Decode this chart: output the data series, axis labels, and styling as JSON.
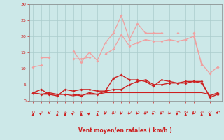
{
  "x": [
    0,
    1,
    2,
    3,
    4,
    5,
    6,
    7,
    8,
    9,
    10,
    11,
    12,
    13,
    14,
    15,
    16,
    17,
    18,
    19,
    20,
    21,
    22,
    23
  ],
  "line1_rafales_max": [
    null,
    13.5,
    13.5,
    null,
    null,
    15.5,
    12,
    15,
    12.5,
    18,
    21,
    26.5,
    19,
    24,
    21,
    21,
    21,
    null,
    21,
    null,
    21,
    11,
    null,
    10.5
  ],
  "line2_rafales_moy": [
    10.5,
    11,
    null,
    null,
    null,
    13,
    13,
    13.5,
    null,
    14.5,
    16,
    20.5,
    17,
    18,
    19,
    18.5,
    18.5,
    19,
    18.5,
    19,
    20,
    11.5,
    8.5,
    10.5
  ],
  "line3_vent_max": [
    2.5,
    3.5,
    2,
    1.5,
    3.5,
    3,
    3.5,
    3.5,
    3,
    3,
    7,
    8,
    6.5,
    6.5,
    6,
    4.5,
    6.5,
    6,
    5.5,
    6,
    6,
    6,
    1,
    2
  ],
  "line4_vent_moy": [
    2.5,
    2,
    2.5,
    2,
    2,
    2,
    1.5,
    2.5,
    2,
    3,
    3.5,
    3.5,
    5,
    6,
    6.5,
    5,
    5,
    5.5,
    5.5,
    5.5,
    6,
    5.5,
    1.5,
    2.5
  ],
  "line5_flat": [
    2.5,
    2,
    2,
    2,
    2,
    1.5,
    2,
    2,
    2,
    2.5,
    2.5,
    2.5,
    2.5,
    2.5,
    2.5,
    2.5,
    2.5,
    2.5,
    2.5,
    2.5,
    2.5,
    2.5,
    2,
    2
  ],
  "wind_dirs": [
    0,
    45,
    135,
    0,
    0,
    45,
    0,
    45,
    0,
    90,
    90,
    90,
    90,
    90,
    90,
    45,
    90,
    90,
    45,
    0,
    90,
    0,
    0,
    135
  ],
  "xlabel": "Vent moyen/en rafales ( km/h )",
  "xlim": [
    -0.5,
    23.5
  ],
  "ylim": [
    0,
    30
  ],
  "yticks": [
    0,
    5,
    10,
    15,
    20,
    25,
    30
  ],
  "xticks": [
    0,
    1,
    2,
    3,
    4,
    5,
    6,
    7,
    8,
    9,
    10,
    11,
    12,
    13,
    14,
    15,
    16,
    17,
    18,
    19,
    20,
    21,
    22,
    23
  ],
  "bg_color": "#cce8e8",
  "grid_color": "#aacccc",
  "line_color_light": "#f0a0a0",
  "line_color_dark": "#cc2020",
  "arrow_color": "#cc2020"
}
